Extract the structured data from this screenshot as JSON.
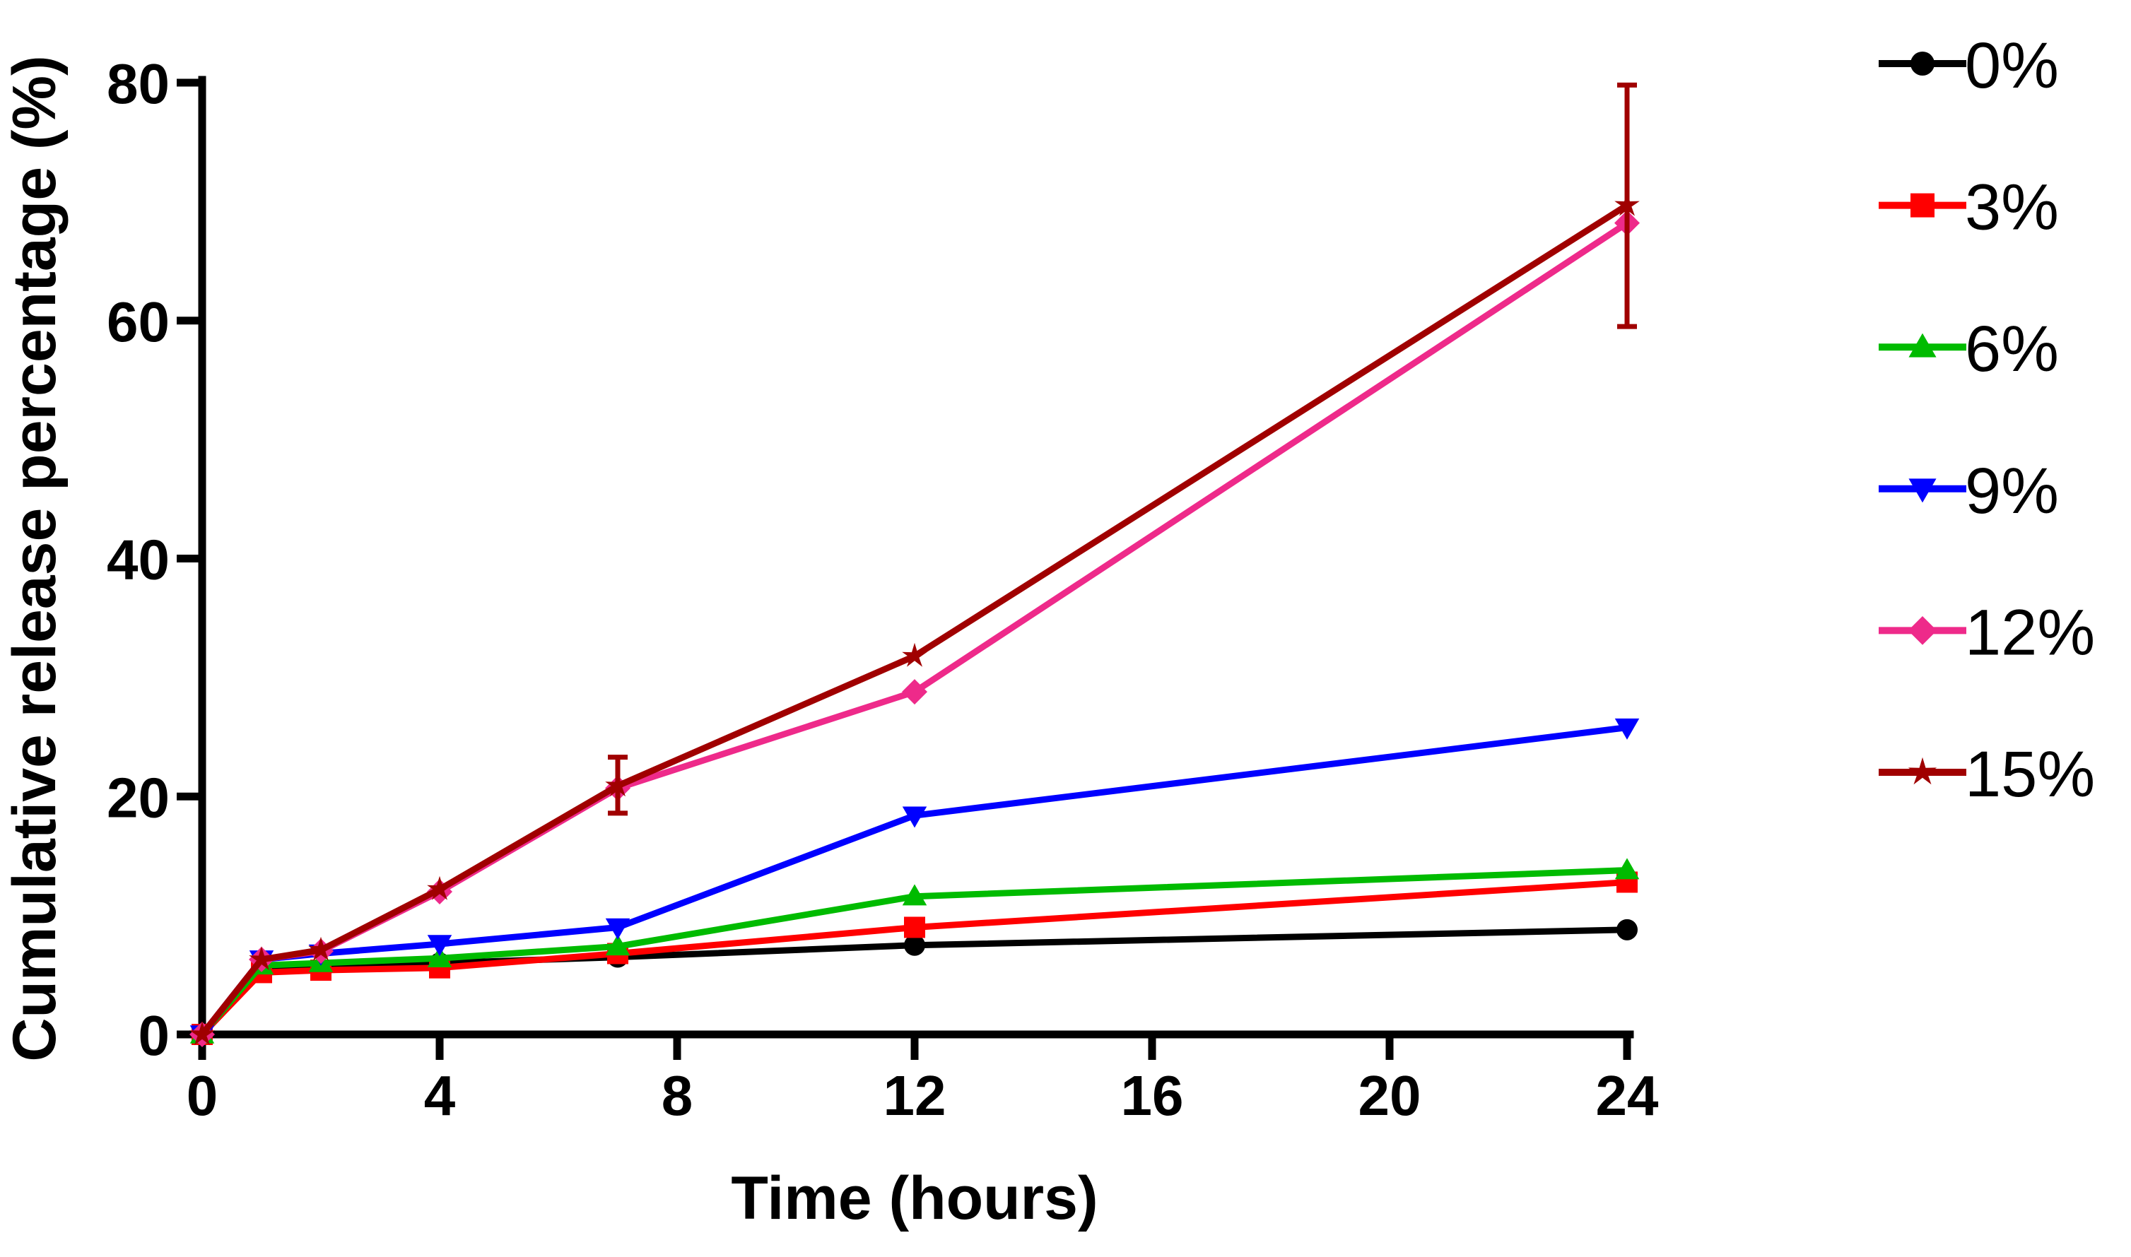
{
  "chart_data": {
    "type": "line",
    "title": "",
    "xlabel": "Time (hours)",
    "ylabel": "Cumulative release percentage (%)",
    "xlim": [
      0,
      24
    ],
    "ylim": [
      0,
      80
    ],
    "xticks": [
      0,
      4,
      8,
      12,
      16,
      20,
      24
    ],
    "yticks": [
      0,
      20,
      40,
      60,
      80
    ],
    "legend_position": "right",
    "grid": false,
    "x": [
      0,
      1,
      2,
      4,
      7,
      12,
      24
    ],
    "series": [
      {
        "name": "0%",
        "color": "#000000",
        "marker": "circle",
        "values": [
          0,
          5.3,
          5.5,
          6.0,
          6.5,
          7.5,
          8.8
        ]
      },
      {
        "name": "3%",
        "color": "#ff0000",
        "marker": "square",
        "values": [
          0,
          5.2,
          5.4,
          5.6,
          6.8,
          9.0,
          12.8
        ]
      },
      {
        "name": "6%",
        "color": "#00bb00",
        "marker": "triangle-up",
        "values": [
          0,
          5.8,
          6.0,
          6.4,
          7.4,
          11.6,
          13.8
        ]
      },
      {
        "name": "9%",
        "color": "#0000ff",
        "marker": "triangle-down",
        "values": [
          0,
          6.3,
          6.8,
          7.6,
          9.0,
          18.4,
          25.8
        ]
      },
      {
        "name": "12%",
        "color": "#ee2a8a",
        "marker": "diamond",
        "values": [
          0,
          6.3,
          7.0,
          12.0,
          20.7,
          28.8,
          68.2
        ]
      },
      {
        "name": "15%",
        "color": "#a00000",
        "marker": "star",
        "values": [
          0,
          6.3,
          7.1,
          12.2,
          20.9,
          31.8,
          69.7
        ],
        "error_bars": [
          {
            "x": 7,
            "low": 18.6,
            "high": 23.3
          },
          {
            "x": 24,
            "low": 59.5,
            "high": 79.8
          }
        ]
      }
    ]
  }
}
